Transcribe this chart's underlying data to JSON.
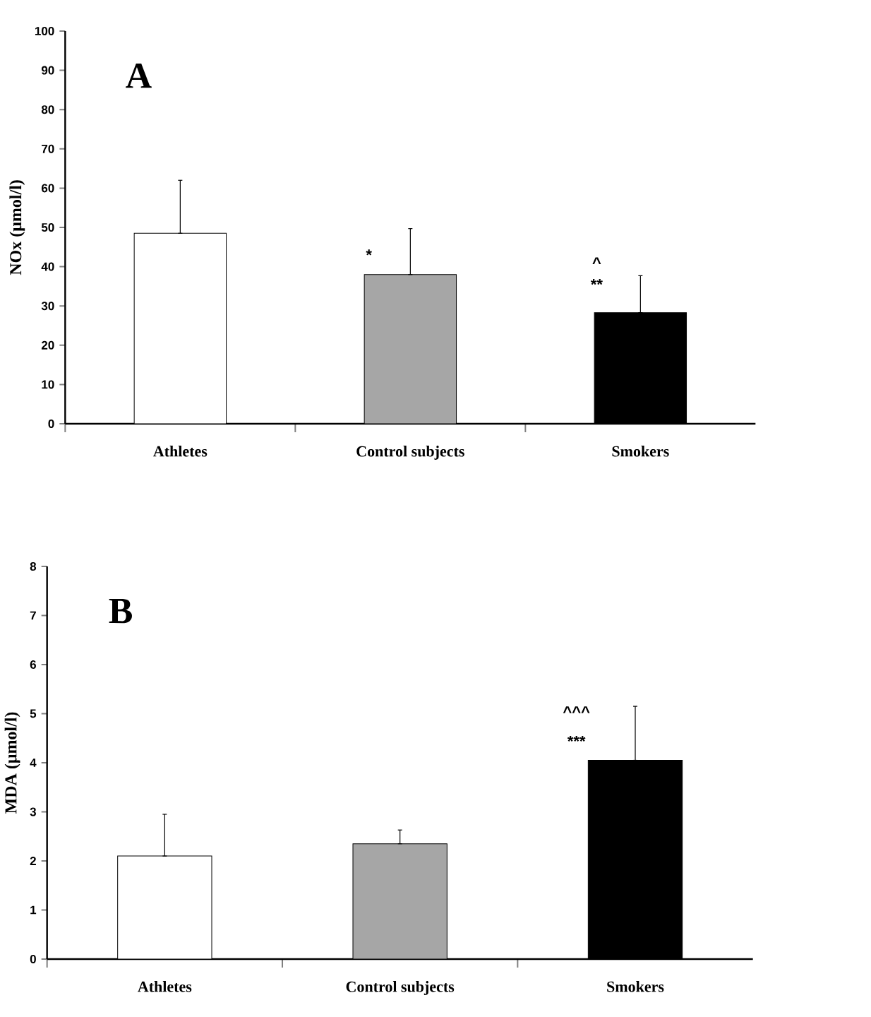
{
  "chart_data": [
    {
      "type": "bar",
      "categories": [
        "Athletes",
        "Control subjects",
        "Smokers"
      ],
      "values": [
        48.5,
        38,
        28.3
      ],
      "colors": [
        "#ffffff",
        "#a6a6a6",
        "#000000"
      ],
      "errors": [
        [
          48.5,
          62
        ],
        [
          38,
          49.7
        ],
        [
          28.3,
          37.7
        ]
      ],
      "ylabel": "NOx (μmol/l)",
      "ylim": [
        0,
        100
      ],
      "yticks": [
        0,
        10,
        20,
        30,
        40,
        50,
        60,
        70,
        80,
        90,
        100
      ],
      "annotations": [
        "A",
        "*",
        "^",
        "**"
      ]
    },
    {
      "type": "bar",
      "categories": [
        "Athletes",
        "Control subjects",
        "Smokers"
      ],
      "values": [
        2.1,
        2.35,
        4.05
      ],
      "colors": [
        "#ffffff",
        "#a6a6a6",
        "#000000"
      ],
      "errors": [
        [
          2.1,
          2.95
        ],
        [
          2.35,
          2.63
        ],
        [
          4.05,
          5.15
        ]
      ],
      "ylabel": "MDA (μmol/l)",
      "ylim": [
        0,
        8
      ],
      "yticks": [
        0,
        1,
        2,
        3,
        4,
        5,
        6,
        7,
        8
      ],
      "annotations": [
        "B",
        "^^^",
        "***"
      ]
    }
  ]
}
